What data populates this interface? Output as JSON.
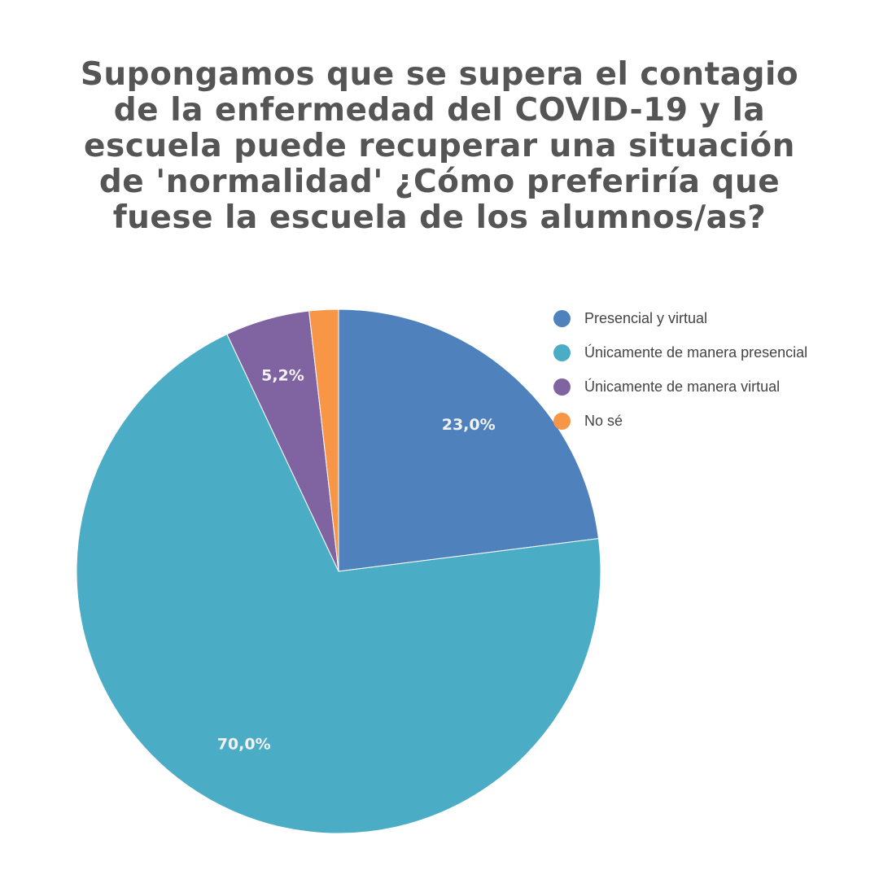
{
  "chart_data": {
    "type": "pie",
    "title_lines": [
      "Supongamos que se supera el contagio",
      "de la enfermedad del COVID-19 y la",
      "escuela puede recuperar una situación",
      "de 'normalidad' ¿Cómo preferiría que",
      "fuese la escuela de los alumnos/as?"
    ],
    "legend_position": "top-right",
    "slices": [
      {
        "label": "Presencial y virtual",
        "value": 23.0,
        "data_label": "23,0%",
        "color": "#4f81bd"
      },
      {
        "label": "Únicamente de manera presencial",
        "value": 70.0,
        "data_label": "70,0%",
        "color": "#4bacc6"
      },
      {
        "label": "Únicamente de manera virtual",
        "value": 5.2,
        "data_label": "5,2%",
        "color": "#8064a2"
      },
      {
        "label": "No sé",
        "value": 1.8,
        "data_label": "",
        "color": "#f79646"
      }
    ]
  }
}
